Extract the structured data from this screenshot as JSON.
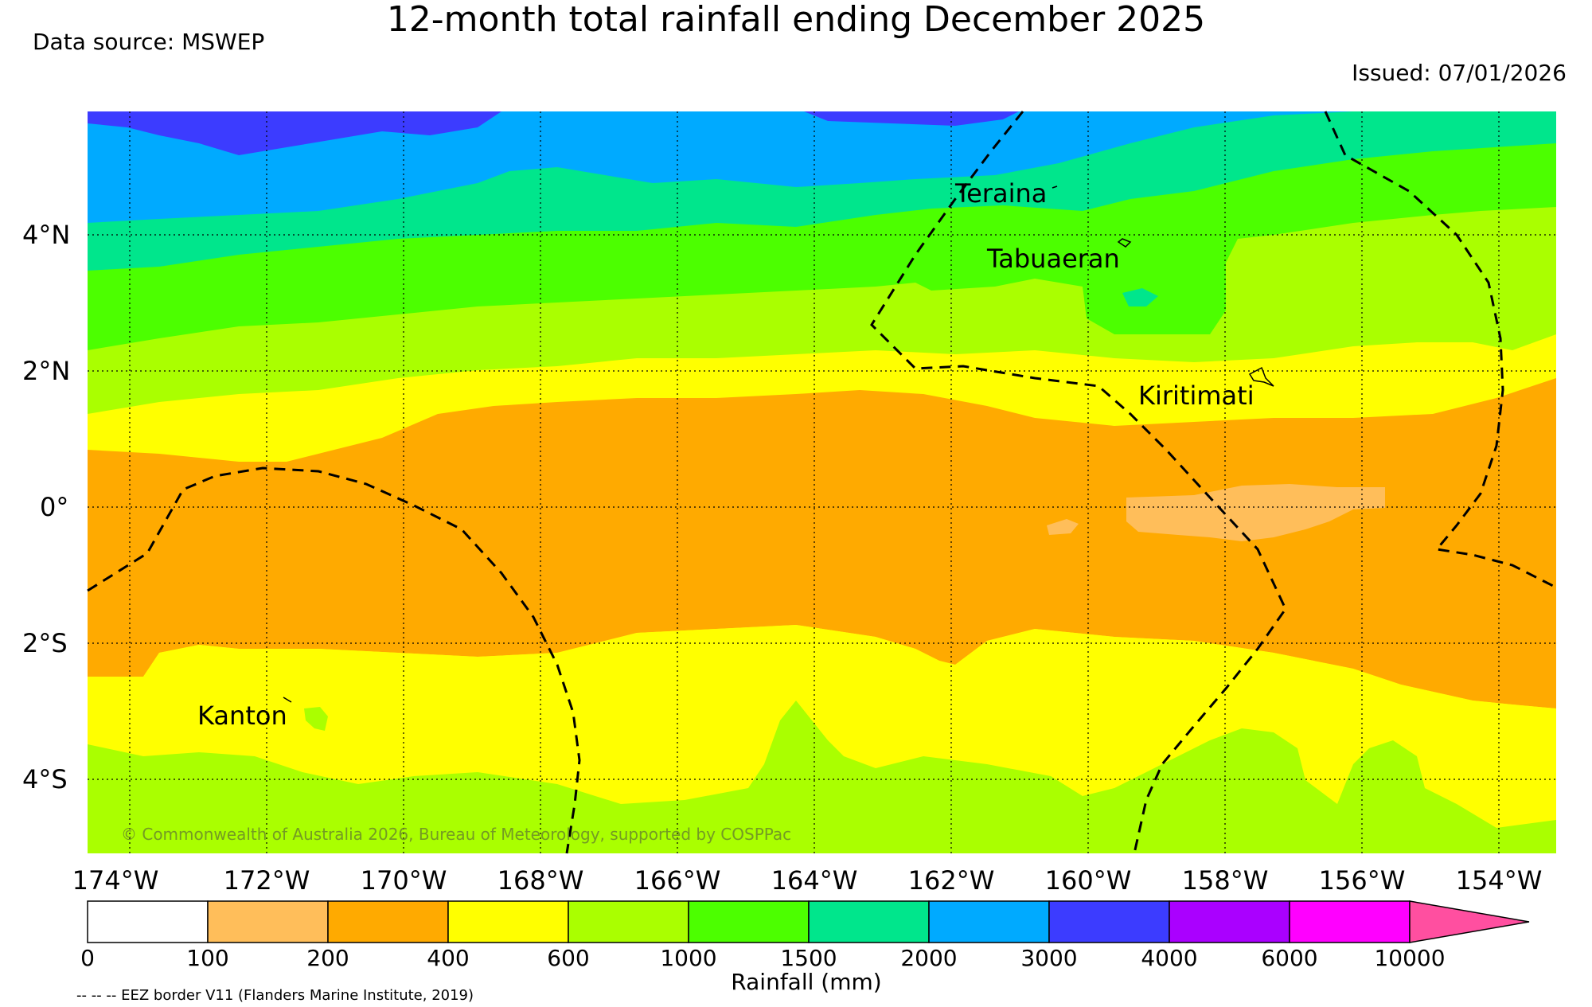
{
  "title": "12-month total rainfall ending December 2025",
  "data_source": "Data source: MSWEP",
  "issued": "Issued: 07/01/2026",
  "copyright": "© Commonwealth of Australia 2026, Bureau of Meteorology, supported by COSPPac",
  "eez_note": "-- -- -- EEZ border V11 (Flanders Marine Institute, 2019)",
  "places": {
    "teraina": "Teraina",
    "tabuaeran": "Tabuaeran",
    "kiritimati": "Kiritimati",
    "kanton": "Kanton"
  },
  "axes": {
    "lon_labels": [
      "174°W",
      "172°W",
      "170°W",
      "168°W",
      "166°W",
      "164°W",
      "162°W",
      "160°W",
      "158°W",
      "156°W",
      "154°W"
    ],
    "lat_labels": [
      "4°N",
      "2°N",
      "0°",
      "2°S",
      "4°S"
    ]
  },
  "colorbar": {
    "title": "Rainfall (mm)",
    "boundaries": [
      "0",
      "100",
      "200",
      "400",
      "600",
      "1000",
      "1500",
      "2000",
      "3000",
      "4000",
      "6000",
      "10000"
    ],
    "colors": [
      "#ffffff",
      "#ffbe5a",
      "#ffaa00",
      "#ffff00",
      "#aaff00",
      "#4cff00",
      "#00e68c",
      "#00aaff",
      "#3c3cff",
      "#aa00ff",
      "#ff00ff",
      "#ff4fa0"
    ]
  },
  "colors": {
    "band_4000": "#3c3cff",
    "band_3000": "#00aaff",
    "band_2000": "#00e68c",
    "band_1500": "#4cff00",
    "band_1000": "#aaff00",
    "band_600": "#ffff00",
    "band_400": "#ffaa00",
    "band_200": "#ffbe5a"
  }
}
